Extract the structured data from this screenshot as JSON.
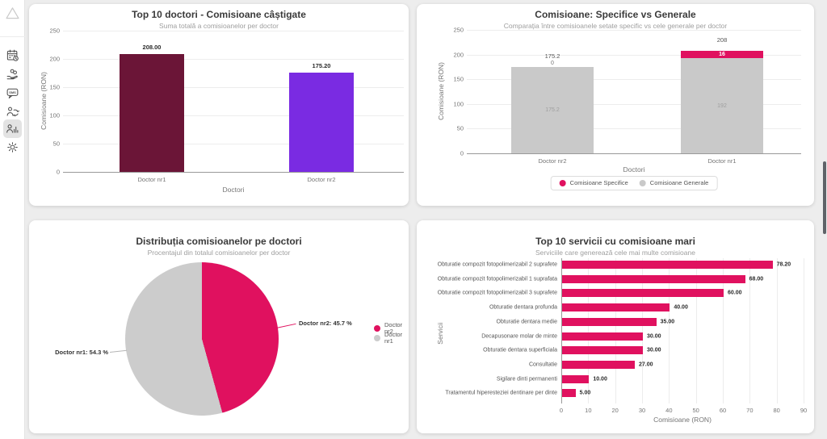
{
  "sidebar": {
    "sms_text": "SMS",
    "items": [
      {
        "icon": "calendar-icon",
        "active": false
      },
      {
        "icon": "payments-icon",
        "active": false
      },
      {
        "icon": "sms-icon",
        "active": false
      },
      {
        "icon": "patient-transfer-icon",
        "active": false
      },
      {
        "icon": "statistics-icon",
        "active": true
      },
      {
        "icon": "settings-icon",
        "active": false
      }
    ]
  },
  "colors": {
    "accent_pink": "#e0115f",
    "maroon": "#6b1537",
    "purple": "#7a2be2",
    "gray_bar": "#c9c9c9",
    "gray_pie": "#cccccc"
  },
  "chart_data": [
    {
      "type": "bar",
      "title": "Top 10 doctori - Comisioane câștigate",
      "subtitle": "Suma totală a comisioanelor per doctor",
      "xlabel": "Doctori",
      "ylabel": "Comisioane (RON)",
      "ylim": [
        0,
        250
      ],
      "yticks": [
        0,
        50,
        100,
        150,
        200,
        250
      ],
      "grid": true,
      "legend_position": "none",
      "categories": [
        "Doctor nr1",
        "Doctor nr2"
      ],
      "values": [
        208.0,
        175.2
      ],
      "value_labels": [
        "208.00",
        "175.20"
      ],
      "bar_colors": [
        "#6b1537",
        "#7a2be2"
      ]
    },
    {
      "type": "bar",
      "variant": "stacked",
      "title": "Comisioane: Specifice vs Generale",
      "subtitle": "Comparația între comisioanele setate specific vs cele generale per doctor",
      "xlabel": "Doctori",
      "ylabel": "Comisioane (RON)",
      "ylim": [
        0,
        250
      ],
      "yticks": [
        0,
        50,
        100,
        150,
        200,
        250
      ],
      "grid": true,
      "legend_position": "bottom",
      "categories": [
        "Doctor nr2",
        "Doctor nr1"
      ],
      "series": [
        {
          "name": "Comisioane Specifice",
          "color": "#e0115f",
          "values": [
            0,
            16
          ]
        },
        {
          "name": "Comisioane Generale",
          "color": "#c9c9c9",
          "values": [
            175.2,
            192
          ]
        }
      ],
      "totals": [
        "175.2",
        "208"
      ]
    },
    {
      "type": "pie",
      "title": "Distribuția comisioanelor pe doctori",
      "subtitle": "Procentajul din totalul comisioanelor per doctor",
      "legend_position": "right",
      "slices": [
        {
          "label": "Doctor nr2",
          "pct": 45.7,
          "color": "#e0115f",
          "callout": "Doctor nr2: 45.7 %"
        },
        {
          "label": "Doctor nr1",
          "pct": 54.3,
          "color": "#cccccc",
          "callout": "Doctor nr1: 54.3 %"
        }
      ]
    },
    {
      "type": "bar",
      "orientation": "horizontal",
      "title": "Top 10 servicii cu comisioane mari",
      "subtitle": "Serviciile care generează cele mai multe comisioane",
      "xlabel": "Comisioane (RON)",
      "ylabel": "Servicii",
      "xlim": [
        0,
        90
      ],
      "xticks": [
        0,
        10,
        20,
        30,
        40,
        50,
        60,
        70,
        80,
        90
      ],
      "grid": true,
      "bar_color": "#e0115f",
      "categories": [
        "Obturatie compozit fotopolimerizabil 2 suprafete",
        "Obturatie compozit fotopolimerizabil 1 suprafata",
        "Obturatie compozit fotopolimerizabil 3 suprafete",
        "Obturatie dentara profunda",
        "Obturatie dentara medie",
        "Decapusonare molar de minte",
        "Obturatie dentara superficiala",
        "Consultatie",
        "Sigilare dinti permanenti",
        "Tratamentul hiperesteziei dentinare per dinte"
      ],
      "values": [
        78.2,
        68,
        60,
        40,
        35,
        30,
        30,
        27,
        10,
        5
      ],
      "value_labels": [
        "78.20",
        "68.00",
        "60.00",
        "40.00",
        "35.00",
        "30.00",
        "30.00",
        "27.00",
        "10.00",
        "5.00"
      ]
    }
  ]
}
